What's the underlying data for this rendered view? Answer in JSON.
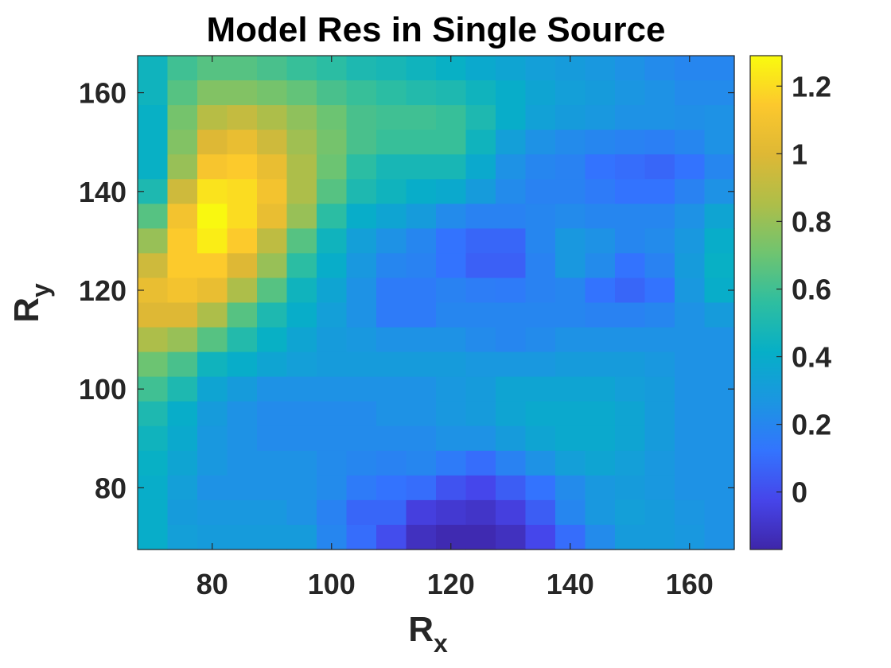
{
  "chart_data": {
    "type": "heatmap",
    "title": "Model Res in Single Source",
    "xlabel": {
      "main": "R",
      "sub": "x"
    },
    "ylabel": {
      "main": "R",
      "sub": "y"
    },
    "x_ticks": [
      "80",
      "100",
      "120",
      "140",
      "160"
    ],
    "x_tick_values": [
      80,
      100,
      120,
      140,
      160
    ],
    "y_ticks": [
      "80",
      "100",
      "120",
      "140",
      "160"
    ],
    "y_tick_values": [
      80,
      100,
      120,
      140,
      160
    ],
    "xlim": [
      67.5,
      167.5
    ],
    "ylim": [
      67.5,
      167.5
    ],
    "colorbar": {
      "ticks": [
        "0",
        "0.2",
        "0.4",
        "0.6",
        "0.8",
        "1",
        "1.2"
      ],
      "tick_values": [
        0,
        0.2,
        0.4,
        0.6,
        0.8,
        1.0,
        1.2
      ],
      "range": [
        -0.17,
        1.29
      ],
      "colormap": "parula"
    },
    "x": [
      70,
      75,
      80,
      85,
      90,
      95,
      100,
      105,
      110,
      115,
      120,
      125,
      130,
      135,
      140,
      145,
      150,
      155,
      160,
      165
    ],
    "y": [
      165,
      160,
      155,
      150,
      145,
      140,
      135,
      130,
      125,
      120,
      115,
      110,
      105,
      100,
      95,
      90,
      85,
      80,
      75,
      70
    ],
    "z": [
      [
        0.45,
        0.6,
        0.65,
        0.65,
        0.62,
        0.58,
        0.55,
        0.5,
        0.48,
        0.45,
        0.42,
        0.38,
        0.35,
        0.32,
        0.3,
        0.28,
        0.25,
        0.22,
        0.2,
        0.2
      ],
      [
        0.45,
        0.65,
        0.75,
        0.75,
        0.72,
        0.68,
        0.62,
        0.58,
        0.55,
        0.52,
        0.5,
        0.45,
        0.4,
        0.35,
        0.32,
        0.3,
        0.27,
        0.25,
        0.22,
        0.22
      ],
      [
        0.42,
        0.72,
        0.88,
        0.92,
        0.85,
        0.78,
        0.7,
        0.62,
        0.6,
        0.6,
        0.58,
        0.5,
        0.4,
        0.33,
        0.3,
        0.28,
        0.25,
        0.25,
        0.24,
        0.25
      ],
      [
        0.42,
        0.75,
        1.0,
        1.05,
        0.95,
        0.82,
        0.72,
        0.62,
        0.58,
        0.58,
        0.58,
        0.45,
        0.32,
        0.25,
        0.22,
        0.2,
        0.18,
        0.17,
        0.2,
        0.25
      ],
      [
        0.42,
        0.8,
        1.12,
        1.15,
        1.05,
        0.85,
        0.7,
        0.55,
        0.48,
        0.48,
        0.48,
        0.38,
        0.25,
        0.2,
        0.18,
        0.12,
        0.1,
        0.08,
        0.12,
        0.2
      ],
      [
        0.5,
        0.95,
        1.22,
        1.2,
        1.1,
        0.85,
        0.65,
        0.5,
        0.45,
        0.4,
        0.38,
        0.3,
        0.22,
        0.18,
        0.18,
        0.15,
        0.12,
        0.12,
        0.18,
        0.25
      ],
      [
        0.65,
        1.1,
        1.28,
        1.2,
        1.05,
        0.8,
        0.55,
        0.4,
        0.35,
        0.3,
        0.22,
        0.18,
        0.18,
        0.2,
        0.22,
        0.2,
        0.2,
        0.2,
        0.25,
        0.35
      ],
      [
        0.8,
        1.15,
        1.25,
        1.15,
        0.9,
        0.65,
        0.45,
        0.32,
        0.25,
        0.2,
        0.12,
        0.08,
        0.08,
        0.2,
        0.28,
        0.25,
        0.2,
        0.22,
        0.28,
        0.4
      ],
      [
        0.95,
        1.15,
        1.15,
        1.0,
        0.8,
        0.55,
        0.4,
        0.28,
        0.2,
        0.18,
        0.12,
        0.06,
        0.06,
        0.18,
        0.28,
        0.22,
        0.12,
        0.18,
        0.3,
        0.42
      ],
      [
        1.05,
        1.1,
        1.05,
        0.85,
        0.65,
        0.45,
        0.35,
        0.25,
        0.15,
        0.15,
        0.18,
        0.16,
        0.15,
        0.18,
        0.2,
        0.12,
        0.08,
        0.12,
        0.28,
        0.4
      ],
      [
        1.0,
        1.0,
        0.85,
        0.65,
        0.5,
        0.4,
        0.32,
        0.25,
        0.15,
        0.15,
        0.2,
        0.2,
        0.2,
        0.2,
        0.2,
        0.18,
        0.18,
        0.2,
        0.25,
        0.3
      ],
      [
        0.85,
        0.8,
        0.65,
        0.52,
        0.42,
        0.35,
        0.3,
        0.28,
        0.25,
        0.25,
        0.25,
        0.22,
        0.2,
        0.22,
        0.25,
        0.25,
        0.25,
        0.25,
        0.25,
        0.25
      ],
      [
        0.7,
        0.62,
        0.45,
        0.4,
        0.35,
        0.32,
        0.3,
        0.3,
        0.3,
        0.3,
        0.3,
        0.28,
        0.28,
        0.28,
        0.3,
        0.3,
        0.3,
        0.28,
        0.25,
        0.25
      ],
      [
        0.6,
        0.5,
        0.35,
        0.3,
        0.25,
        0.25,
        0.25,
        0.25,
        0.25,
        0.25,
        0.28,
        0.3,
        0.35,
        0.35,
        0.35,
        0.35,
        0.32,
        0.3,
        0.25,
        0.25
      ],
      [
        0.5,
        0.4,
        0.3,
        0.25,
        0.22,
        0.22,
        0.22,
        0.22,
        0.25,
        0.25,
        0.28,
        0.3,
        0.35,
        0.38,
        0.38,
        0.38,
        0.35,
        0.3,
        0.25,
        0.25
      ],
      [
        0.45,
        0.38,
        0.28,
        0.25,
        0.22,
        0.22,
        0.22,
        0.22,
        0.22,
        0.22,
        0.25,
        0.25,
        0.3,
        0.35,
        0.38,
        0.38,
        0.35,
        0.3,
        0.25,
        0.25
      ],
      [
        0.42,
        0.35,
        0.28,
        0.25,
        0.25,
        0.25,
        0.22,
        0.2,
        0.18,
        0.2,
        0.15,
        0.1,
        0.18,
        0.25,
        0.32,
        0.35,
        0.32,
        0.28,
        0.25,
        0.25
      ],
      [
        0.4,
        0.32,
        0.25,
        0.25,
        0.25,
        0.25,
        0.22,
        0.15,
        0.12,
        0.1,
        0.02,
        -0.02,
        0.05,
        0.12,
        0.22,
        0.28,
        0.3,
        0.28,
        0.25,
        0.25
      ],
      [
        0.4,
        0.3,
        0.28,
        0.28,
        0.28,
        0.25,
        0.18,
        0.08,
        0.08,
        -0.05,
        -0.08,
        -0.1,
        -0.05,
        0.05,
        0.2,
        0.28,
        0.32,
        0.3,
        0.27,
        0.25
      ],
      [
        0.4,
        0.32,
        0.3,
        0.3,
        0.3,
        0.3,
        0.2,
        0.1,
        0.0,
        -0.12,
        -0.15,
        -0.15,
        -0.12,
        -0.02,
        0.1,
        0.22,
        0.3,
        0.3,
        0.28,
        0.25
      ]
    ]
  }
}
